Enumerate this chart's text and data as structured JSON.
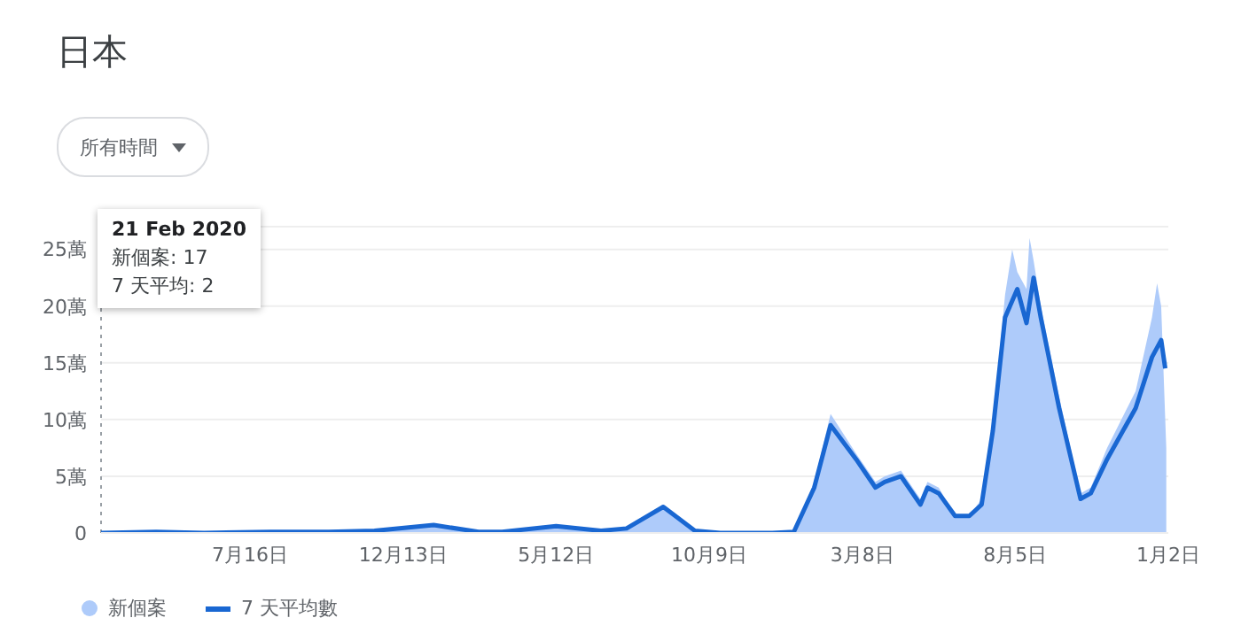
{
  "chart_data": {
    "type": "area",
    "title": "日本",
    "xlim": [
      "2020-02-21",
      "2023-01-02"
    ],
    "xticks": [
      {
        "value": "2020-07-16",
        "label": "7月16日"
      },
      {
        "value": "2020-12-13",
        "label": "12月13日"
      },
      {
        "value": "2021-05-12",
        "label": "5月12日"
      },
      {
        "value": "2021-10-09",
        "label": "10月9日"
      },
      {
        "value": "2022-03-08",
        "label": "3月8日"
      },
      {
        "value": "2022-08-05",
        "label": "8月5日"
      },
      {
        "value": "2023-01-02",
        "label": "1月2日"
      }
    ],
    "ylim": [
      0,
      27
    ],
    "yticks": [
      0,
      {
        "value": 5,
        "label": "5萬"
      },
      {
        "value": 10,
        "label": "10萬"
      },
      {
        "value": 15,
        "label": "15萬"
      },
      {
        "value": 20,
        "label": "20萬"
      },
      {
        "value": 25,
        "label": "25萬"
      }
    ],
    "grid": "y",
    "legend": "bottom left",
    "series": [
      {
        "name": "新個案",
        "color": "#aecbfa",
        "x": [
          "2020-02-21",
          "2020-04-15",
          "2020-06-01",
          "2020-08-05",
          "2020-10-01",
          "2020-11-15",
          "2021-01-12",
          "2021-02-25",
          "2021-03-20",
          "2021-05-12",
          "2021-06-25",
          "2021-07-20",
          "2021-08-25",
          "2021-09-25",
          "2021-10-20",
          "2021-12-10",
          "2021-12-31",
          "2022-01-20",
          "2022-02-05",
          "2022-03-02",
          "2022-03-21",
          "2022-03-30",
          "2022-04-15",
          "2022-05-04",
          "2022-05-11",
          "2022-05-22",
          "2022-06-07",
          "2022-06-21",
          "2022-07-03",
          "2022-07-14",
          "2022-07-26",
          "2022-08-02",
          "2022-08-07",
          "2022-08-16",
          "2022-08-19",
          "2022-08-23",
          "2022-08-30",
          "2022-09-17",
          "2022-10-08",
          "2022-10-18",
          "2022-11-03",
          "2022-12-01",
          "2022-12-17",
          "2022-12-22",
          "2022-12-26",
          "2022-12-31"
        ],
        "values": [
          0,
          0.1,
          0,
          0.2,
          0.1,
          0.2,
          0.8,
          0.1,
          0.2,
          0.7,
          0.2,
          0.5,
          2.5,
          0.3,
          0,
          0,
          0.1,
          4.5,
          10.5,
          7,
          4.5,
          5,
          5.5,
          3,
          4.5,
          4,
          1.5,
          1.5,
          3,
          9.5,
          21,
          25,
          23,
          21.5,
          26,
          24,
          20,
          12,
          3.5,
          4,
          7.5,
          12.5,
          19,
          22,
          20,
          7.5
        ]
      },
      {
        "name": "7 天平均數",
        "type": "line",
        "color": "#1967d2",
        "x": [
          "2020-02-21",
          "2020-04-15",
          "2020-06-01",
          "2020-08-05",
          "2020-10-01",
          "2020-11-15",
          "2021-01-12",
          "2021-02-25",
          "2021-03-20",
          "2021-05-12",
          "2021-06-25",
          "2021-07-20",
          "2021-08-25",
          "2021-09-25",
          "2021-10-20",
          "2021-12-10",
          "2021-12-31",
          "2022-01-20",
          "2022-02-05",
          "2022-03-02",
          "2022-03-21",
          "2022-03-30",
          "2022-04-15",
          "2022-05-04",
          "2022-05-11",
          "2022-05-22",
          "2022-06-07",
          "2022-06-21",
          "2022-07-03",
          "2022-07-14",
          "2022-07-26",
          "2022-08-07",
          "2022-08-16",
          "2022-08-23",
          "2022-08-30",
          "2022-09-17",
          "2022-10-08",
          "2022-10-18",
          "2022-11-03",
          "2022-12-01",
          "2022-12-17",
          "2022-12-26",
          "2022-12-30"
        ],
        "values": [
          0,
          0.1,
          0,
          0.1,
          0.1,
          0.2,
          0.7,
          0.1,
          0.1,
          0.6,
          0.2,
          0.4,
          2.3,
          0.2,
          0,
          0,
          0.1,
          4,
          9.5,
          6.5,
          4,
          4.5,
          5,
          2.5,
          4,
          3.5,
          1.5,
          1.5,
          2.5,
          9,
          19,
          21.5,
          18.5,
          22.5,
          19,
          11,
          3,
          3.5,
          6.5,
          11,
          15.5,
          17,
          14.5
        ]
      }
    ],
    "ref_lines": [
      {
        "axis": "x",
        "value": "2020-02-21",
        "color": "#9aa0a6",
        "line_style": "dotted"
      }
    ],
    "annotations": [
      "21 Feb 2020\n新個案: 17\n7 天平均: 2",
      "所有時間"
    ]
  }
}
